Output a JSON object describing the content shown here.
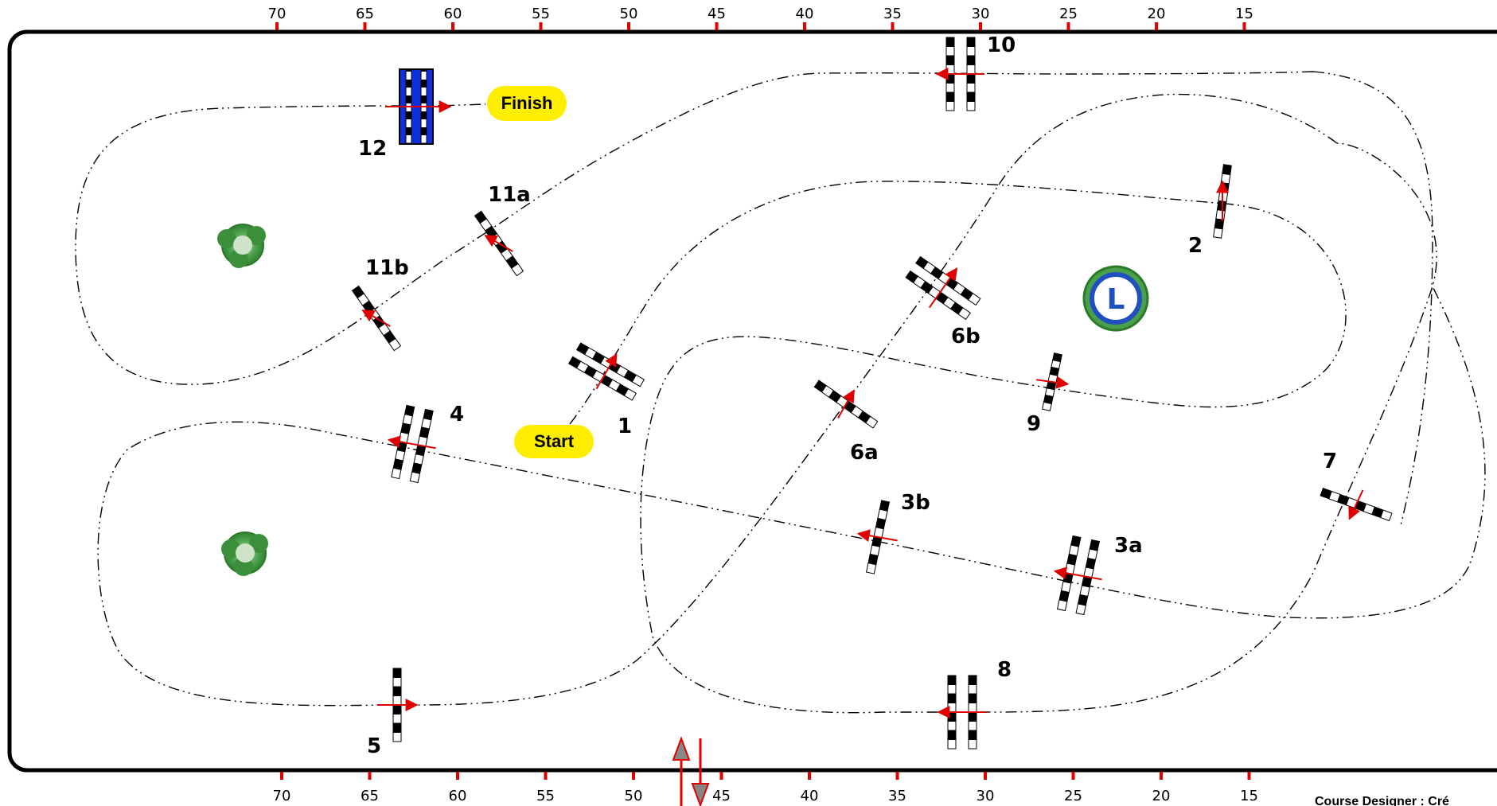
{
  "ruler": {
    "top": [
      "70",
      "65",
      "60",
      "55",
      "50",
      "45",
      "40",
      "35",
      "30",
      "25",
      "20",
      "15"
    ],
    "bottom": [
      "70",
      "65",
      "60",
      "55",
      "50",
      "45",
      "40",
      "35",
      "30",
      "25",
      "20",
      "15"
    ]
  },
  "markers": {
    "start": "Start",
    "finish": "Finish"
  },
  "fences": {
    "f1": "1",
    "f2": "2",
    "f3a": "3a",
    "f3b": "3b",
    "f4": "4",
    "f5": "5",
    "f6a": "6a",
    "f6b": "6b",
    "f7": "7",
    "f8": "8",
    "f9": "9",
    "f10": "10",
    "f11a": "11a",
    "f11b": "11b",
    "f12": "12"
  },
  "judge_marker": "L",
  "credit": "Course Designer : Cré",
  "colors": {
    "ruler_tick": "#e00000",
    "arrow": "#e00000",
    "marker_fill": "#ffee00",
    "water_jump": "#1030e0",
    "tree": "#3a9a3a",
    "judge_ring": "#2050c0"
  }
}
